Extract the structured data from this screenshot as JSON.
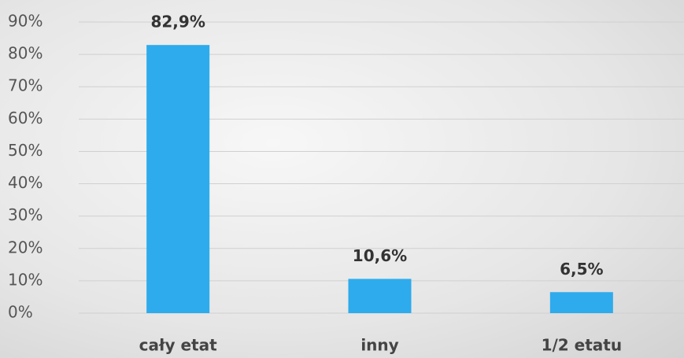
{
  "chart_data": {
    "type": "bar",
    "categories": [
      "cały etat",
      "inny",
      "1/2 etatu"
    ],
    "values": [
      82.9,
      10.6,
      6.5
    ],
    "value_labels": [
      "82,9%",
      "10,6%",
      "6,5%"
    ],
    "color": "#2eabec",
    "ylim": [
      0,
      90
    ],
    "yticks": [
      {
        "value": 0,
        "label": "0%"
      },
      {
        "value": 10,
        "label": "10%"
      },
      {
        "value": 20,
        "label": "20%"
      },
      {
        "value": 30,
        "label": "30%"
      },
      {
        "value": 40,
        "label": "40%"
      },
      {
        "value": 50,
        "label": "50%"
      },
      {
        "value": 60,
        "label": "60%"
      },
      {
        "value": 70,
        "label": "70%"
      },
      {
        "value": 80,
        "label": "80%"
      },
      {
        "value": 90,
        "label": "90%"
      }
    ],
    "grid": true
  }
}
